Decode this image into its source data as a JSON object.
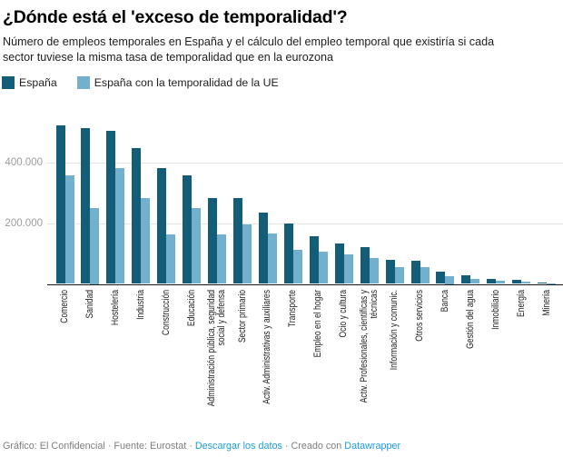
{
  "header": {
    "title": "¿Dónde está el 'exceso de temporalidad'?",
    "subtitle": "Número de empleos temporales en España y el cálculo del empleo temporal que existiría si cada\nsector tuviese la misma tasa de temporalidad que en la eurozona"
  },
  "legend": {
    "items": [
      {
        "label": "España",
        "color": "#135d78"
      },
      {
        "label": "España con la temporalidad de la UE",
        "color": "#73b0cd"
      }
    ]
  },
  "chart_data": {
    "type": "bar",
    "title": "¿Dónde está el 'exceso de temporalidad'?",
    "xlabel": "",
    "ylabel": "",
    "ylim": [
      0,
      560000
    ],
    "grid": "horizontal",
    "legend_position": "top",
    "yticks": [
      {
        "label": "400.000",
        "value": 400000
      },
      {
        "label": "200.000",
        "value": 200000
      }
    ],
    "categories": [
      "Comercio",
      "Sanidad",
      "Hostelería",
      "Industria",
      "Construcción",
      "Educación",
      "Administración pública, seguridad\nsocial y defensa",
      "Sector primario",
      "Activ. Administrativas y auxiliares",
      "Transporte",
      "Empleo en el hogar",
      "Ocio y cultura",
      "Activ. Profesionales, científicas y\ntécnicas",
      "Información y comunic.",
      "Otros servicios",
      "Banca",
      "Gestión del agua",
      "Inmobiliario",
      "Energía",
      "Minería"
    ],
    "series": [
      {
        "name": "España",
        "color": "#135d78",
        "values": [
          520000,
          512000,
          504000,
          445000,
          381000,
          357000,
          281000,
          283000,
          234000,
          198000,
          157000,
          133000,
          120000,
          80000,
          76000,
          39000,
          29000,
          15000,
          13000,
          5000
        ]
      },
      {
        "name": "España con la temporalidad de la UE",
        "color": "#73b0cd",
        "values": [
          357000,
          250000,
          380000,
          281000,
          164000,
          249000,
          164000,
          196000,
          166000,
          112000,
          106000,
          96000,
          86000,
          56000,
          56000,
          25000,
          17000,
          11000,
          8000,
          2000
        ]
      }
    ]
  },
  "footer": {
    "segments": [
      {
        "text": "Gráfico: El Confidencial · Fuente: Eurostat · ",
        "link": false
      },
      {
        "text": "Descargar los datos",
        "link": true
      },
      {
        "text": " · Creado con ",
        "link": false
      },
      {
        "text": "Datawrapper",
        "link": true
      }
    ],
    "link_color": "#1e9cd8"
  }
}
